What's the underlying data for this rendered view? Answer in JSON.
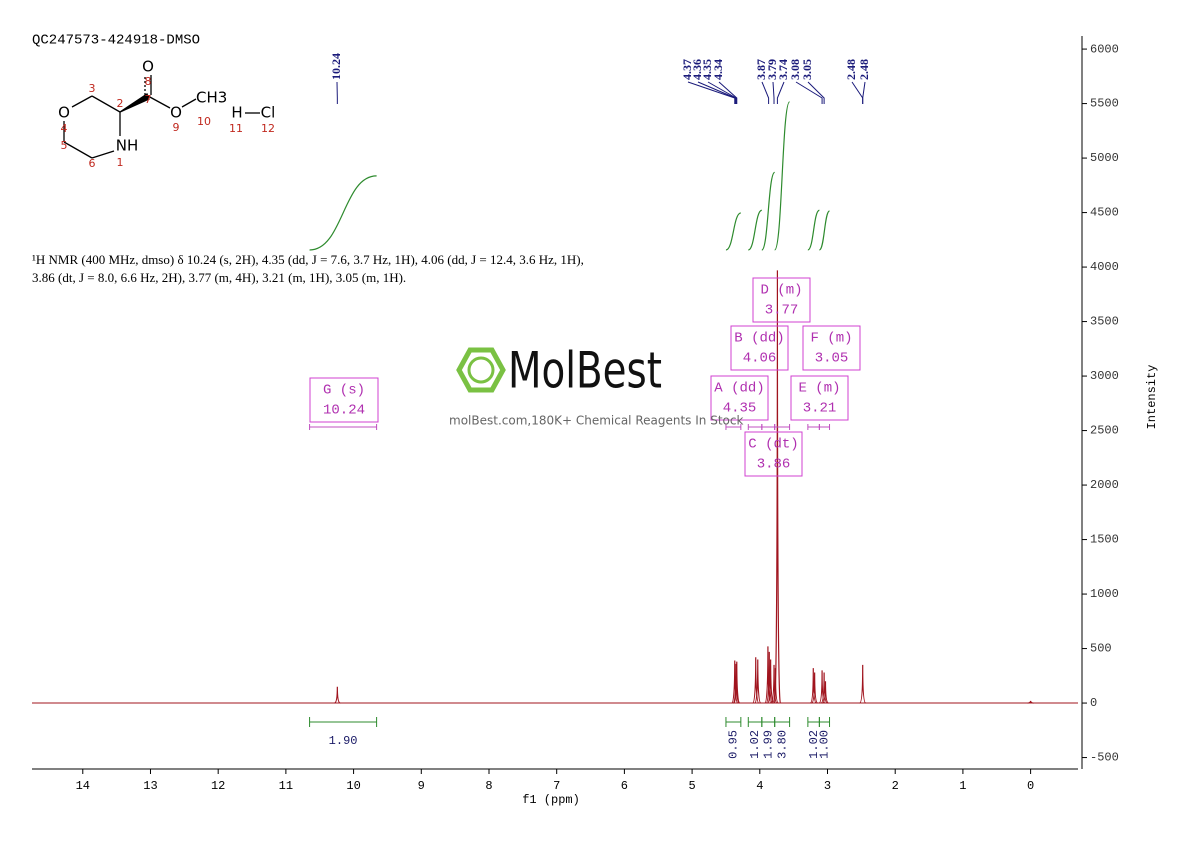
{
  "chart_data": {
    "type": "nmr",
    "title": "QC247573-424918-DMSO",
    "description": "¹H NMR (400 MHz, dmso) δ 10.24 (s, 2H), 4.35 (dd, J = 7.6, 3.7 Hz, 1H), 4.06 (dd, J = 12.4, 3.6 Hz, 1H), 3.86 (dt, J = 8.0, 6.6 Hz, 2H), 3.77 (m, 4H), 3.21 (m, 1H), 3.05 (m, 1H).",
    "xlabel": "f1 (ppm)",
    "ylabel": "Intensity",
    "xlim": [
      14.75,
      -0.7
    ],
    "ylim": [
      -605,
      6120
    ],
    "xticks": [
      14,
      13,
      12,
      11,
      10,
      9,
      8,
      7,
      6,
      5,
      4,
      3,
      2,
      1,
      0
    ],
    "yticks": [
      -500,
      0,
      500,
      1000,
      1500,
      2000,
      2500,
      3000,
      3500,
      4000,
      4500,
      5000,
      5500,
      6000
    ],
    "color": "#a0141e",
    "peaks": {
      "ppm": [
        10.24,
        4.37,
        4.35,
        4.34,
        4.06,
        4.03,
        3.88,
        3.86,
        3.84,
        3.79,
        3.77,
        3.74,
        3.21,
        3.19,
        3.08,
        3.05,
        3.03,
        2.48,
        0
      ],
      "intensity": [
        150,
        390,
        360,
        380,
        420,
        400,
        520,
        470,
        400,
        350,
        320,
        3970,
        320,
        280,
        300,
        280,
        200,
        350,
        20
      ]
    },
    "peak_labels": [
      10.24,
      4.37,
      4.36,
      4.35,
      4.34,
      3.87,
      3.79,
      3.74,
      3.08,
      3.05,
      2.48,
      2.48
    ],
    "multiplets": {
      "labels": [
        "G (s)",
        "A (dd)",
        "B (dd)",
        "C (dt)",
        "D (m)",
        "E (m)",
        "F (m)"
      ],
      "shifts": [
        10.24,
        4.35,
        4.06,
        3.86,
        3.77,
        3.21,
        3.05
      ]
    },
    "integrals": {
      "ranges": [
        [
          10.65,
          9.66
        ],
        [
          4.5,
          4.28
        ],
        [
          4.17,
          3.97
        ],
        [
          3.97,
          3.78
        ],
        [
          3.78,
          3.56
        ],
        [
          3.29,
          3.12
        ],
        [
          3.12,
          2.97
        ]
      ],
      "values": [
        1.9,
        0.95,
        1.02,
        1.99,
        3.8,
        1.02,
        1.0
      ],
      "value_labels": [
        "1.90",
        "0.95",
        "1.02",
        "1.99",
        "3.80",
        "1.02",
        "1.00"
      ],
      "color": "#2e8b2e"
    },
    "watermark": {
      "brand": "MolBest",
      "tagline": "molBest.com,180K+ Chemical Reagents In Stock"
    },
    "structure": {
      "atoms": [
        "O",
        "O",
        "O",
        "CH3",
        "NH",
        "H",
        "Cl"
      ],
      "locants": [
        "8",
        "3",
        "7",
        "2",
        "9",
        "10",
        "11",
        "12",
        "4",
        "5",
        "1",
        "6"
      ]
    }
  }
}
